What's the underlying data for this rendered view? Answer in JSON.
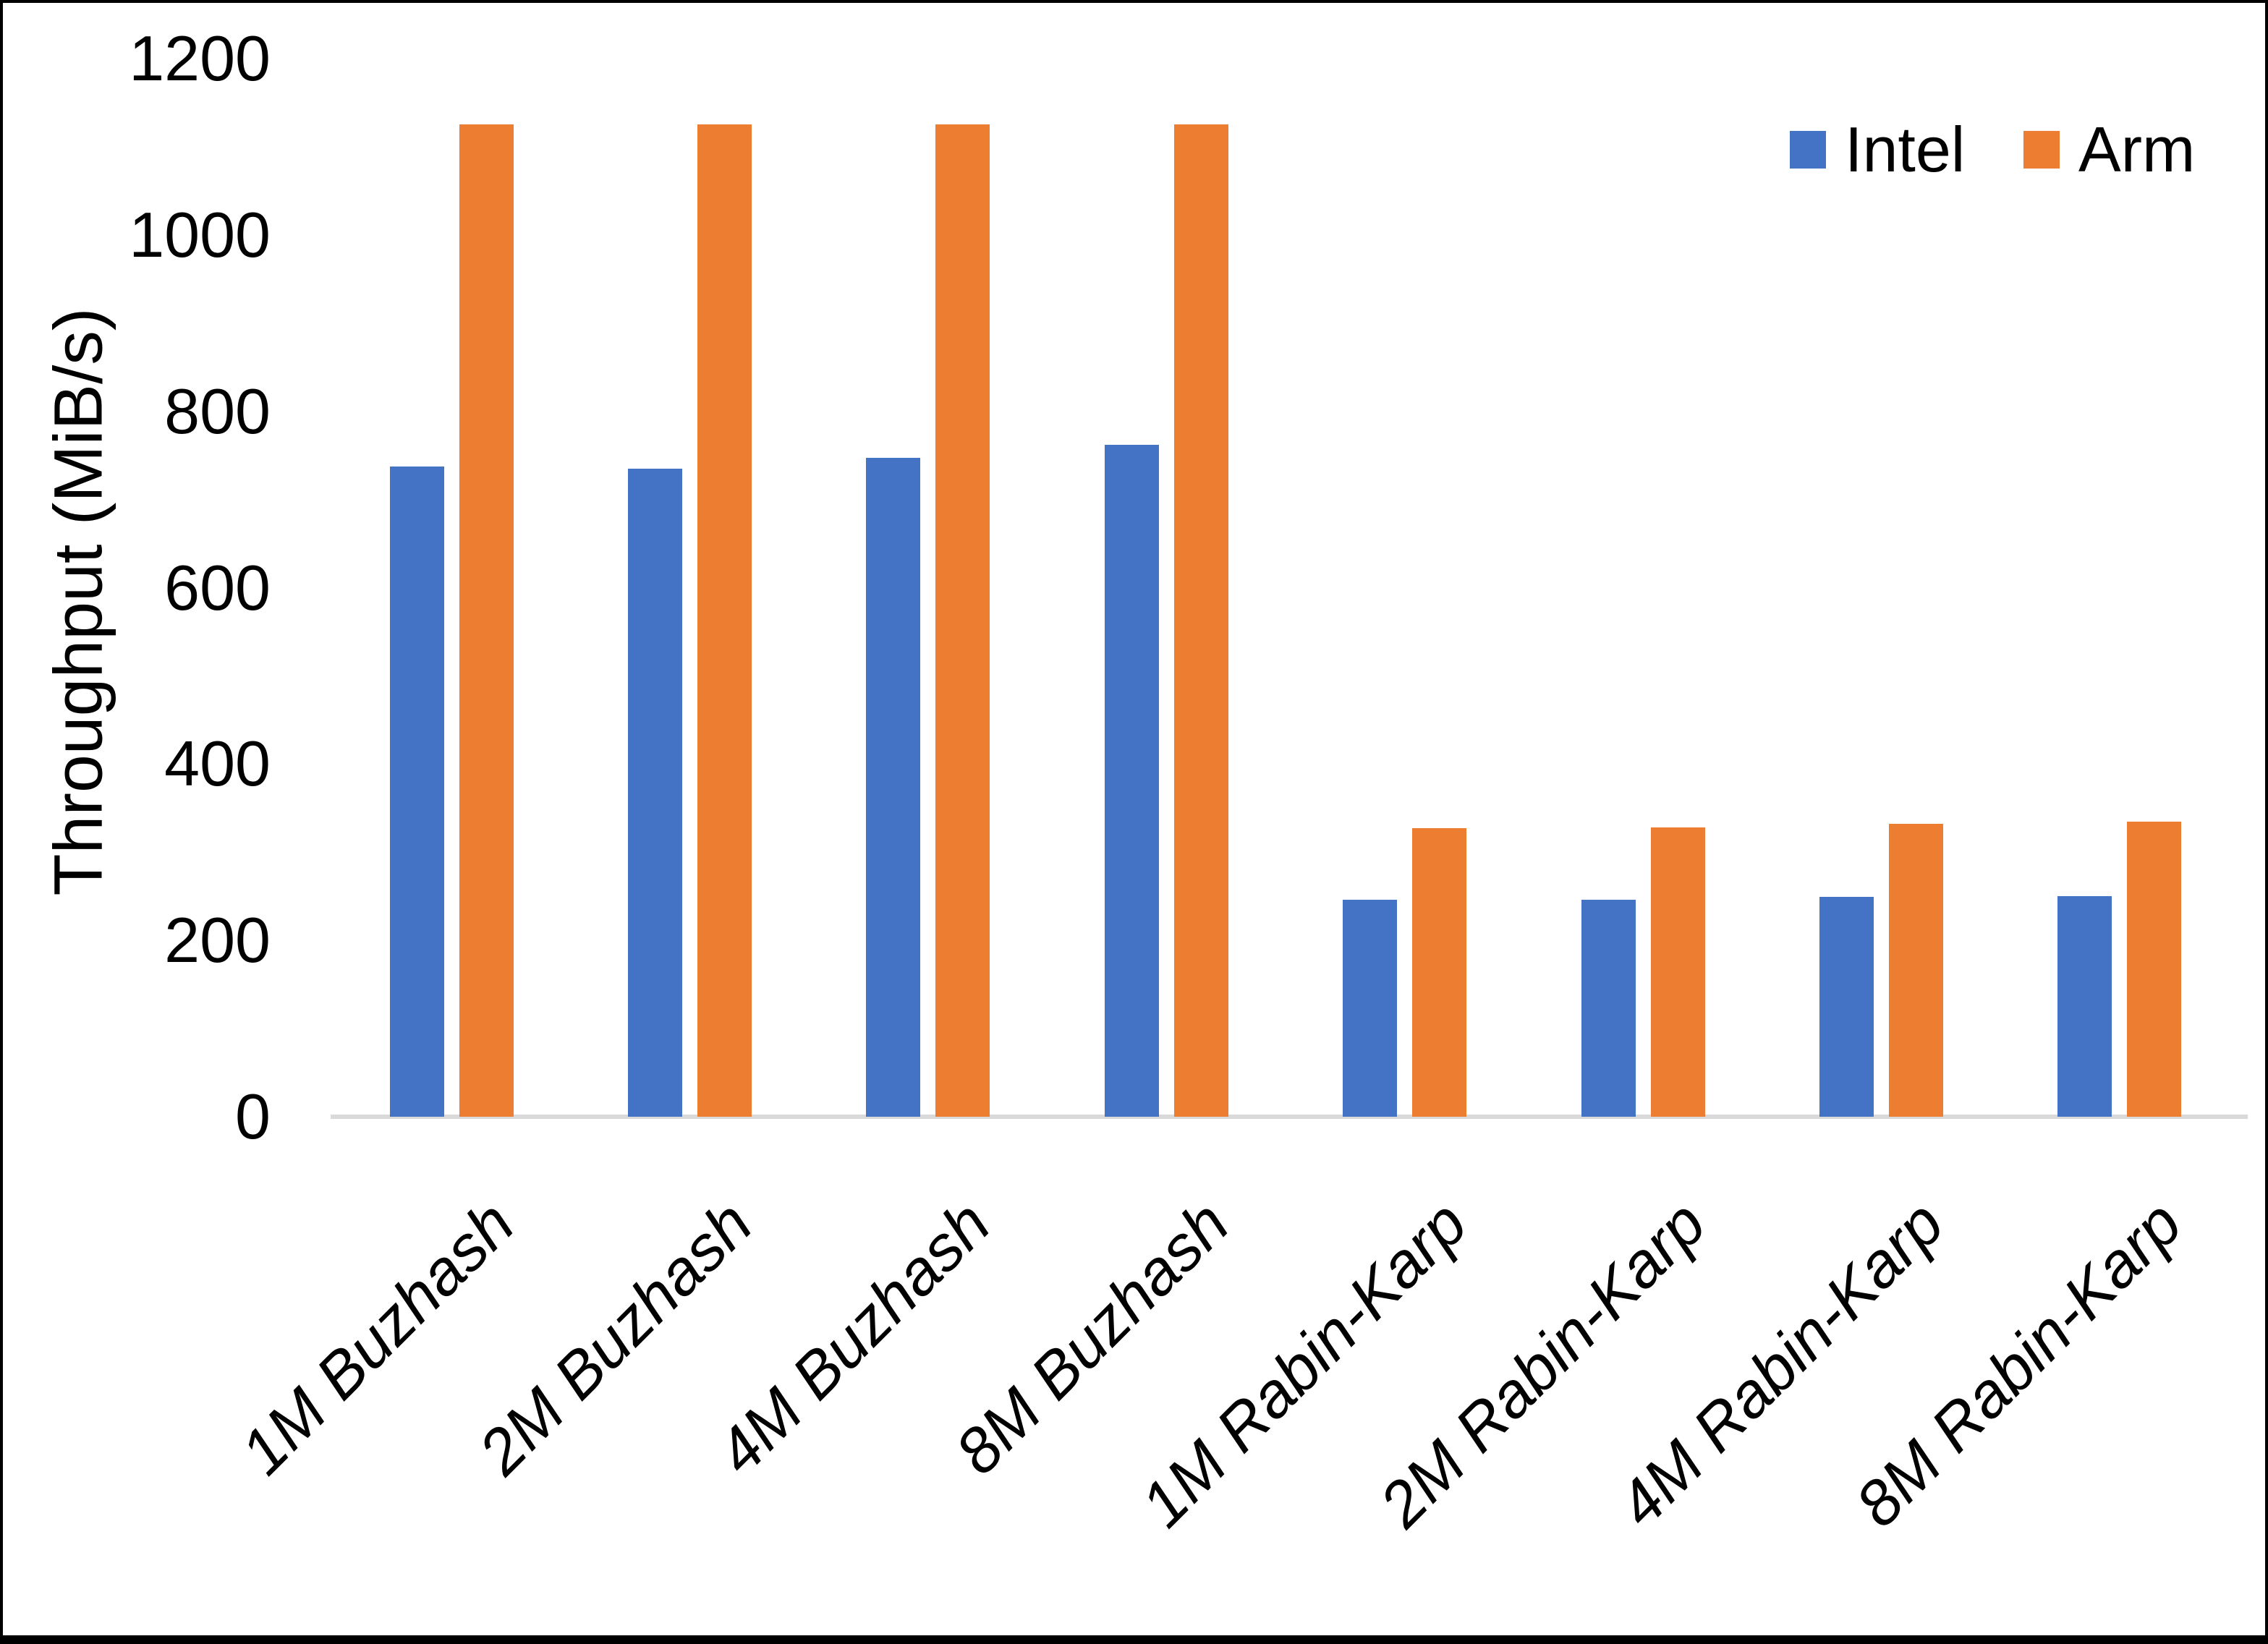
{
  "chart_data": {
    "type": "bar",
    "title": "",
    "ylabel": "Throughput (MiB/s)",
    "xlabel": "",
    "ylim": [
      0,
      1200
    ],
    "ytick_step": 200,
    "grid": false,
    "legend_position": "top-right",
    "categories": [
      "1M Buzhash",
      "2M Buzhash",
      "4M Buzhash",
      "8M Buzhash",
      "1M Rabin-Karp",
      "2M Rabin-Karp",
      "4M Rabin-Karp",
      "8M Rabin-Karp"
    ],
    "series": [
      {
        "name": "Intel",
        "color": "#4472C4",
        "values": [
          737,
          735,
          747,
          762,
          246,
          246,
          249,
          250
        ]
      },
      {
        "name": "Arm",
        "color": "#ED7D31",
        "values": [
          1125,
          1125,
          1125,
          1125,
          327,
          328,
          332,
          335
        ]
      }
    ],
    "axis_line_color": "#D9D9D9",
    "text_color": "#000000",
    "background_color": "#FFFFFF",
    "frame_color": "#000000"
  }
}
